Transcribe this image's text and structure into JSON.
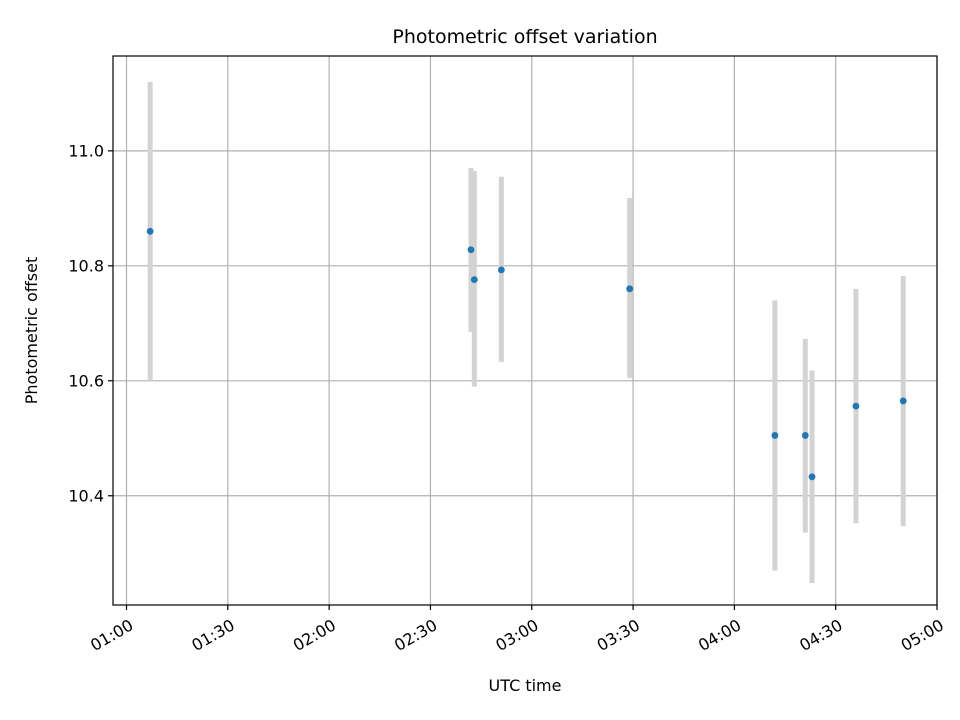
{
  "chart_data": {
    "type": "scatter",
    "title": "Photometric offset variation",
    "xlabel": "UTC time",
    "ylabel": "Photometric offset",
    "x_ticks": [
      "01:00",
      "01:30",
      "02:00",
      "02:30",
      "03:00",
      "03:30",
      "04:00",
      "04:30",
      "05:00"
    ],
    "y_ticks": [
      "10.4",
      "10.6",
      "10.8",
      "11.0"
    ],
    "xlim": [
      "00:56",
      "05:00"
    ],
    "ylim": [
      10.21,
      11.165
    ],
    "grid": true,
    "colors": {
      "point": "#1f77b4",
      "errorbar": "#d3d3d3",
      "grid": "#b0b0b0"
    },
    "series": [
      {
        "points": [
          {
            "x": "01:07",
            "y": 10.86,
            "y_err_low": 10.6,
            "y_err_high": 11.12
          },
          {
            "x": "02:42",
            "y": 10.828,
            "y_err_low": 10.685,
            "y_err_high": 10.97
          },
          {
            "x": "02:43",
            "y": 10.776,
            "y_err_low": 10.59,
            "y_err_high": 10.965
          },
          {
            "x": "02:51",
            "y": 10.793,
            "y_err_low": 10.633,
            "y_err_high": 10.955
          },
          {
            "x": "03:29",
            "y": 10.76,
            "y_err_low": 10.605,
            "y_err_high": 10.918
          },
          {
            "x": "04:12",
            "y": 10.505,
            "y_err_low": 10.27,
            "y_err_high": 10.74
          },
          {
            "x": "04:21",
            "y": 10.505,
            "y_err_low": 10.336,
            "y_err_high": 10.673
          },
          {
            "x": "04:23",
            "y": 10.433,
            "y_err_low": 10.248,
            "y_err_high": 10.618
          },
          {
            "x": "04:36",
            "y": 10.556,
            "y_err_low": 10.352,
            "y_err_high": 10.76
          },
          {
            "x": "04:50",
            "y": 10.565,
            "y_err_low": 10.347,
            "y_err_high": 10.782
          }
        ]
      }
    ]
  }
}
